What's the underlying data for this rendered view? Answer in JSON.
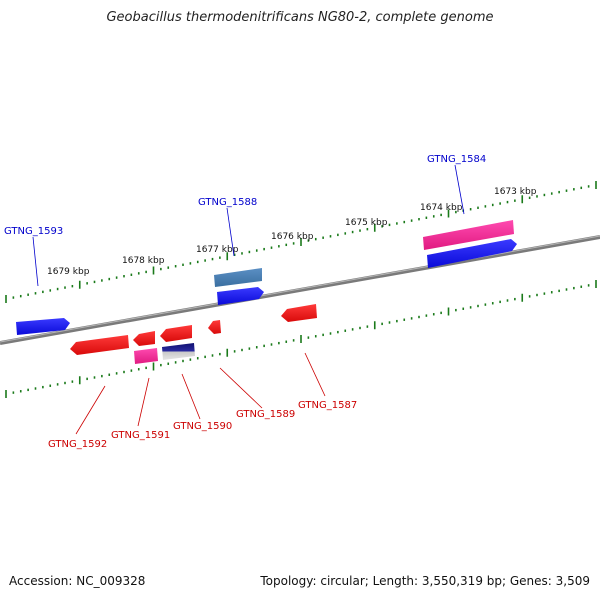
{
  "title": "Geobacillus thermodenitrificans NG80-2, complete genome",
  "footer": {
    "accession": "Accession: NC_009328",
    "summary": "Topology: circular; Length: 3,550,319 bp; Genes: 3,509"
  },
  "colors": {
    "backbone": "#888888",
    "tick": "#1a7a1a",
    "forward_label": "#0000cc",
    "reverse_label": "#cc0000",
    "blue": "#1f1fff",
    "steel_blue": "#4a7fb5",
    "red": "#ff1a1a",
    "magenta": "#ff2a9a",
    "navy": "#1a1a8a"
  },
  "scale_labels": [
    "1673 kbp",
    "1674 kbp",
    "1675 kbp",
    "1676 kbp",
    "1677 kbp",
    "1678 kbp",
    "1679 kbp"
  ],
  "gene_labels": {
    "forward": [
      "GTNG_1584",
      "GTNG_1588",
      "GTNG_1593"
    ],
    "reverse": [
      "GTNG_1587",
      "GTNG_1589",
      "GTNG_1590",
      "GTNG_1591",
      "GTNG_1592"
    ]
  }
}
